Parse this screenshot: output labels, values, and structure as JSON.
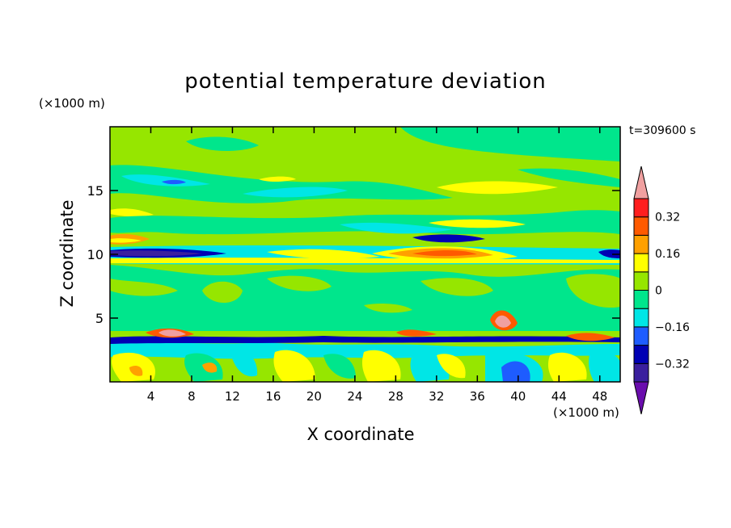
{
  "chart_data": {
    "type": "heatmap",
    "title": "potential temperature deviation",
    "xlabel": "X coordinate",
    "ylabel": "Z coordinate",
    "x_unit": "(×1000 m)",
    "y_unit": "(×1000 m)",
    "time_label": "t=309600 s",
    "xlim": [
      0,
      50
    ],
    "ylim": [
      0,
      20
    ],
    "x_ticks": [
      4,
      8,
      12,
      16,
      20,
      24,
      28,
      32,
      36,
      40,
      44,
      48
    ],
    "y_ticks": [
      5,
      10,
      15
    ],
    "colorbar": {
      "levels": [
        -0.48,
        -0.4,
        -0.32,
        -0.24,
        -0.16,
        -0.08,
        0,
        0.08,
        0.16,
        0.24,
        0.32,
        0.4
      ],
      "labels": [
        "0.32",
        "0.16",
        "0",
        "-0.16",
        "-0.32"
      ],
      "label_values": [
        0.32,
        0.16,
        0,
        -0.16,
        -0.32
      ],
      "colors": [
        "#6a0dad",
        "#3a1f9e",
        "#0000b4",
        "#1e5cff",
        "#00e6e6",
        "#00e68c",
        "#96e600",
        "#ffff00",
        "#ffa000",
        "#ff5a00",
        "#ff1e1e",
        "#f0a0a0"
      ]
    },
    "features": [
      {
        "name": "cold layer near tropopause",
        "x": [
          0,
          50
        ],
        "z": 9.9,
        "value": -0.32
      },
      {
        "name": "warm lens",
        "x": [
          26,
          36
        ],
        "z": 10.0,
        "value": 0.24
      },
      {
        "name": "cold lens upper",
        "x": [
          30,
          36
        ],
        "z": 11.2,
        "value": -0.24
      },
      {
        "name": "inversion top of boundary layer",
        "x": [
          0,
          50
        ],
        "z": 3.4,
        "value": -0.32
      },
      {
        "name": "cold pool",
        "x": [
          38,
          41
        ],
        "z": 0.8,
        "value": -0.16
      }
    ]
  }
}
